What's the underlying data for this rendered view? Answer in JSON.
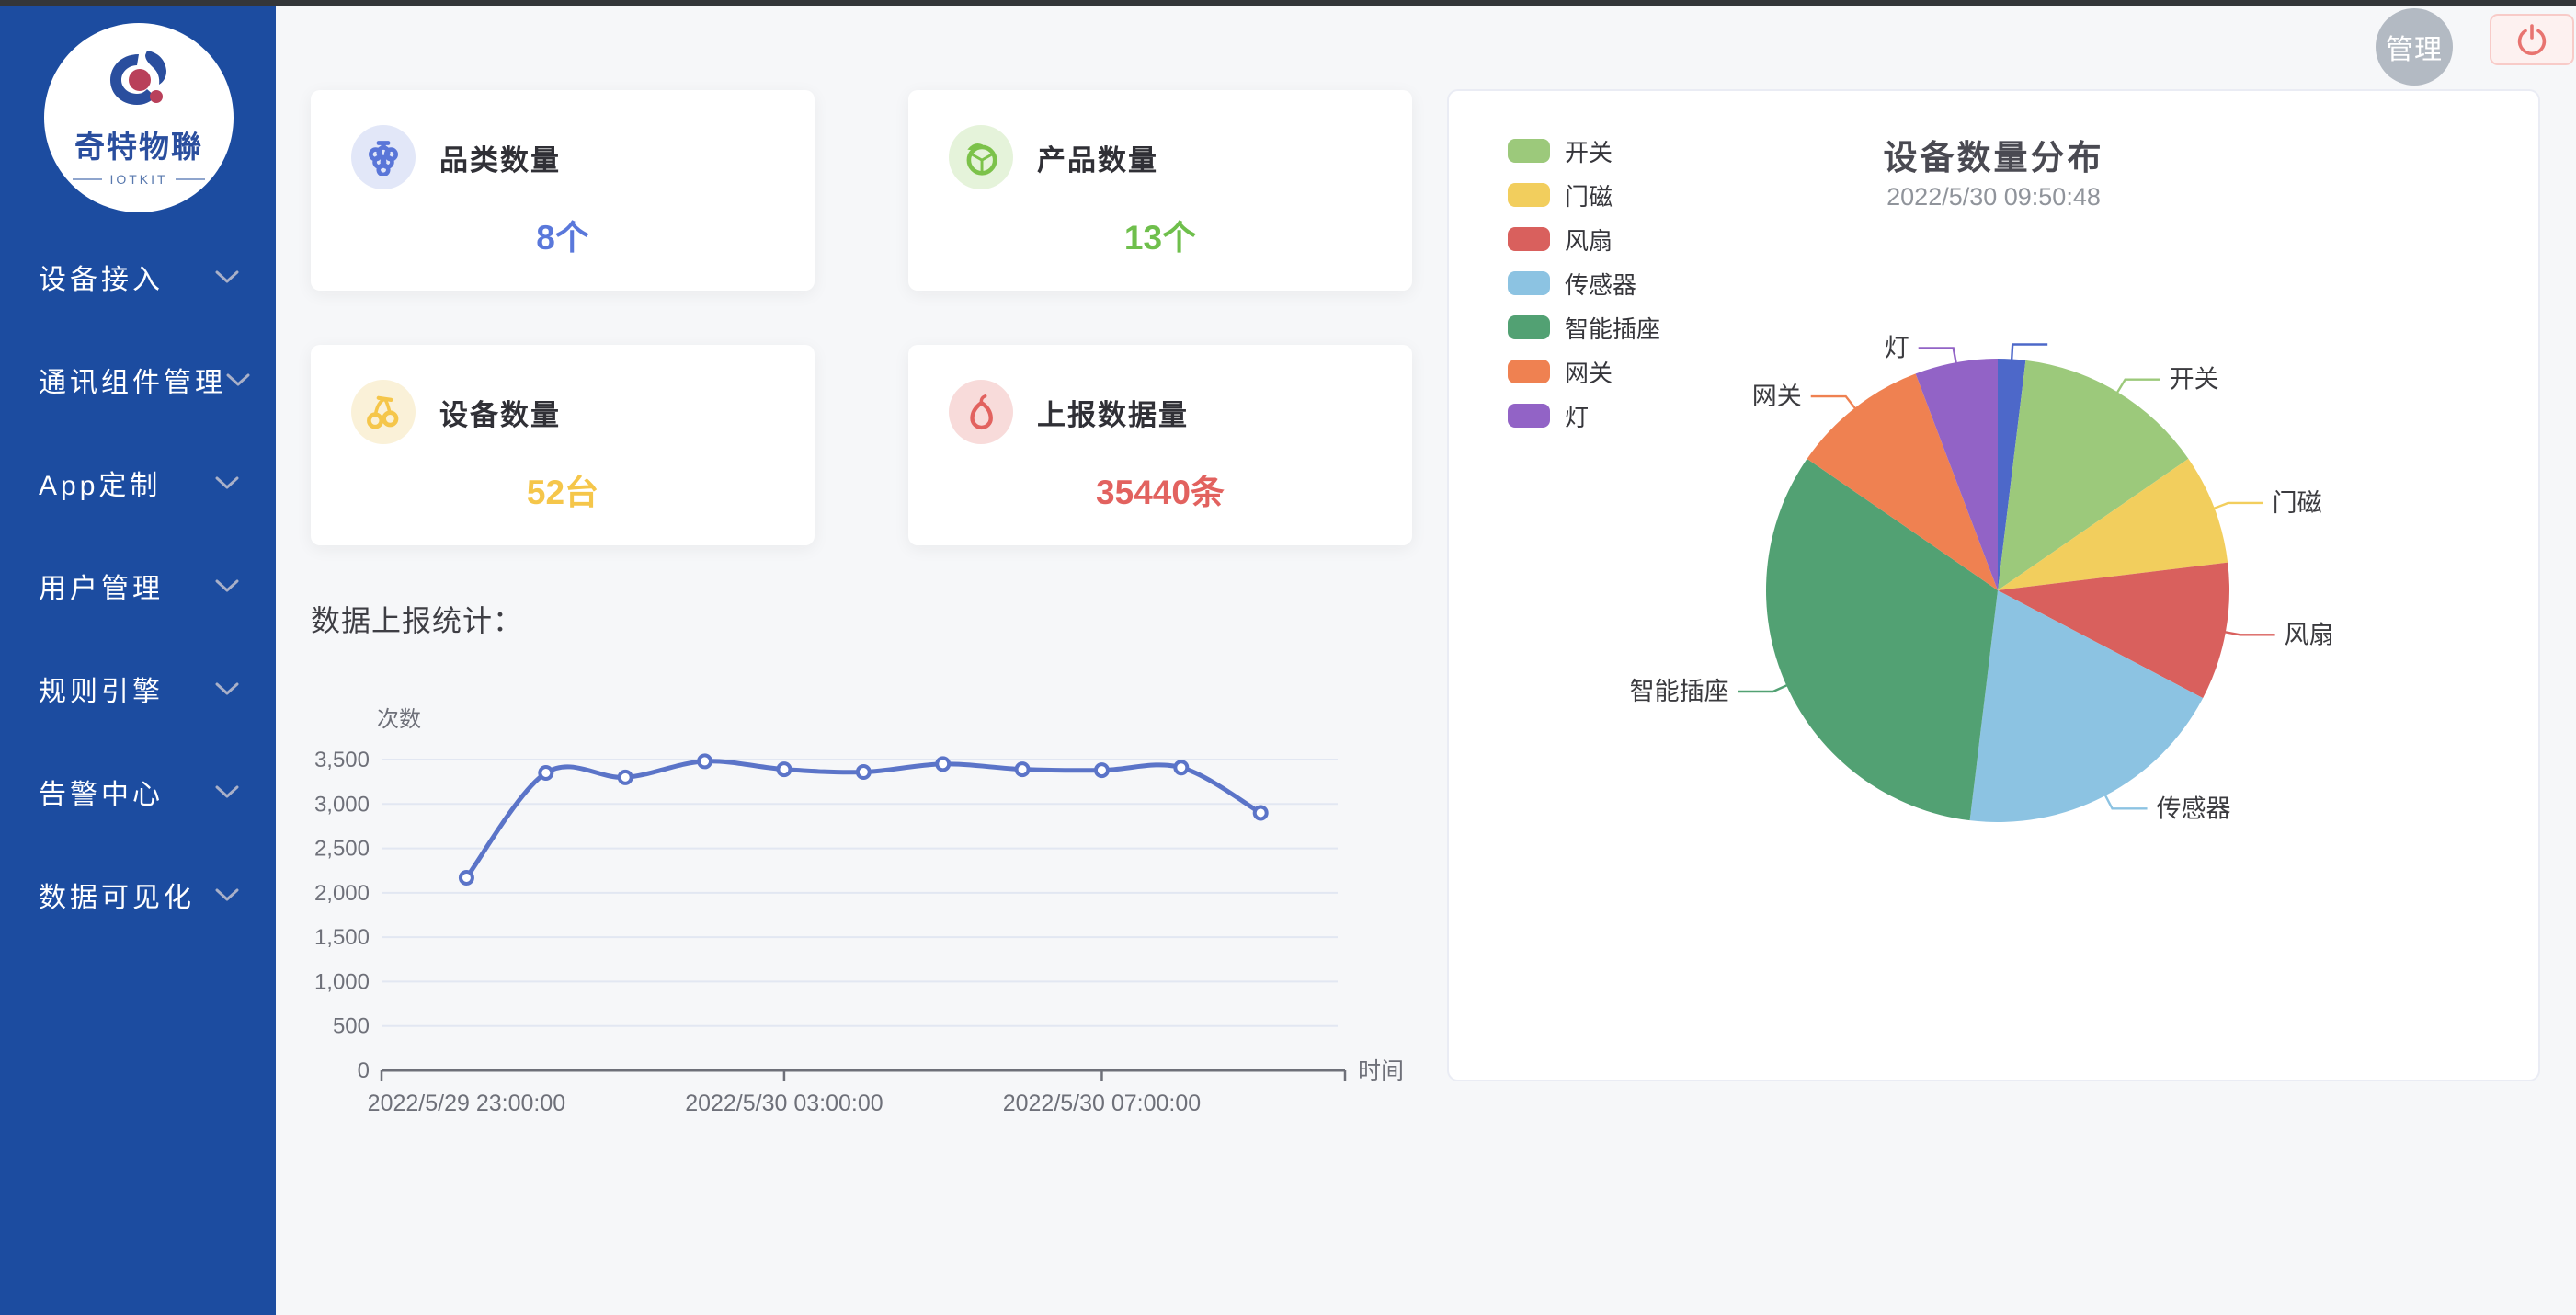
{
  "sidebar": {
    "logo": {
      "title": "奇特物聯",
      "subtitle": "IOTKIT"
    },
    "items": [
      {
        "label": "设备接入"
      },
      {
        "label": "通讯组件管理"
      },
      {
        "label": "App定制"
      },
      {
        "label": "用户管理"
      },
      {
        "label": "规则引擎"
      },
      {
        "label": "告警中心"
      },
      {
        "label": "数据可见化"
      }
    ]
  },
  "topbar": {
    "avatar_label": "管理",
    "logout_icon": "power-icon"
  },
  "stat_cards": [
    {
      "title": "品类数量",
      "value": "8个",
      "icon": "grapes-icon",
      "value_color": "#5a78db",
      "icon_color": "#5a76d8",
      "icon_bg": "#e2e7f8"
    },
    {
      "title": "产品数量",
      "value": "13个",
      "icon": "lime-icon",
      "value_color": "#6fbf4c",
      "icon_color": "#7cc24a",
      "icon_bg": "#e5f3da"
    },
    {
      "title": "设备数量",
      "value": "52台",
      "icon": "cherry-icon",
      "value_color": "#f5c64a",
      "icon_color": "#f5c64a",
      "icon_bg": "#faf1d8"
    },
    {
      "title": "上报数据量",
      "value": "35440条",
      "icon": "pear-icon",
      "value_color": "#e2625f",
      "icon_color": "#e2625f",
      "icon_bg": "#f8dbda"
    }
  ],
  "chart_data": [
    {
      "type": "line",
      "title": "数据上报统计：",
      "xlabel": "时间",
      "ylabel": "次数",
      "x": [
        "2022/5/29 23:00:00",
        "2022/5/30 00:00:00",
        "2022/5/30 01:00:00",
        "2022/5/30 02:00:00",
        "2022/5/30 03:00:00",
        "2022/5/30 04:00:00",
        "2022/5/30 05:00:00",
        "2022/5/30 06:00:00",
        "2022/5/30 07:00:00",
        "2022/5/30 08:00:00",
        "2022/5/30 09:00:00"
      ],
      "values": [
        2170,
        3350,
        3300,
        3480,
        3390,
        3360,
        3450,
        3390,
        3380,
        3410,
        2900
      ],
      "x_tick_labels": [
        "2022/5/29 23:00:00",
        "2022/5/30 03:00:00",
        "2022/5/30 07:00:00"
      ],
      "x_tick_indices": [
        0,
        4,
        8
      ],
      "y_ticks": [
        0,
        500,
        1000,
        1500,
        2000,
        2500,
        3000,
        3500
      ],
      "ylim": [
        0,
        3500
      ],
      "grid": true,
      "smooth": true,
      "line_color": "#5b74c8",
      "grid_color": "#e2e7f2",
      "axis_color": "#6e7079"
    },
    {
      "type": "pie",
      "title": "设备数量分布",
      "subtitle": "2022/5/30 09:50:48",
      "legend_position": "top-left",
      "slices": [
        {
          "name": "",
          "value": 1,
          "color": "#4d68c9"
        },
        {
          "name": "开关",
          "value": 7,
          "color": "#9cc97b"
        },
        {
          "name": "门磁",
          "value": 4,
          "color": "#f2ce5d"
        },
        {
          "name": "风扇",
          "value": 5,
          "color": "#d9605d"
        },
        {
          "name": "传感器",
          "value": 10,
          "color": "#8cc3e2"
        },
        {
          "name": "智能插座",
          "value": 17,
          "color": "#52a173"
        },
        {
          "name": "网关",
          "value": 5,
          "color": "#ef8151"
        },
        {
          "name": "灯",
          "value": 3,
          "color": "#9263c6"
        }
      ]
    }
  ]
}
